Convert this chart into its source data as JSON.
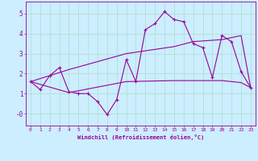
{
  "xlabel": "Windchill (Refroidissement éolien,°C)",
  "background_color": "#cceeff",
  "grid_color": "#aaddcc",
  "line_color": "#990099",
  "xlim": [
    -0.5,
    23.5
  ],
  "ylim": [
    -0.6,
    5.6
  ],
  "xticks": [
    0,
    1,
    2,
    3,
    4,
    5,
    6,
    7,
    8,
    9,
    10,
    11,
    12,
    13,
    14,
    15,
    16,
    17,
    18,
    19,
    20,
    21,
    22,
    23
  ],
  "yticks": [
    0,
    1,
    2,
    3,
    4,
    5
  ],
  "ytick_labels": [
    "-0",
    "1",
    "2",
    "3",
    "4",
    "5"
  ],
  "line1_x": [
    0,
    1,
    2,
    3,
    4,
    5,
    6,
    7,
    8,
    9,
    10,
    11,
    12,
    13,
    14,
    15,
    16,
    17,
    18,
    19,
    20,
    21,
    22,
    23
  ],
  "line1_y": [
    1.6,
    1.2,
    1.9,
    2.3,
    1.1,
    1.0,
    1.0,
    0.6,
    -0.05,
    0.7,
    2.7,
    1.6,
    4.2,
    4.5,
    5.1,
    4.7,
    4.6,
    3.5,
    3.3,
    1.8,
    3.9,
    3.6,
    2.1,
    1.3
  ],
  "line2_x": [
    0,
    4,
    10,
    15,
    17,
    20,
    22,
    23
  ],
  "line2_y": [
    1.6,
    2.2,
    3.0,
    3.35,
    3.6,
    3.7,
    3.9,
    1.3
  ],
  "line3_x": [
    0,
    4,
    10,
    15,
    17,
    20,
    22,
    23
  ],
  "line3_y": [
    1.6,
    1.05,
    1.6,
    1.65,
    1.65,
    1.65,
    1.55,
    1.3
  ],
  "figwidth": 3.2,
  "figheight": 2.0,
  "dpi": 100
}
